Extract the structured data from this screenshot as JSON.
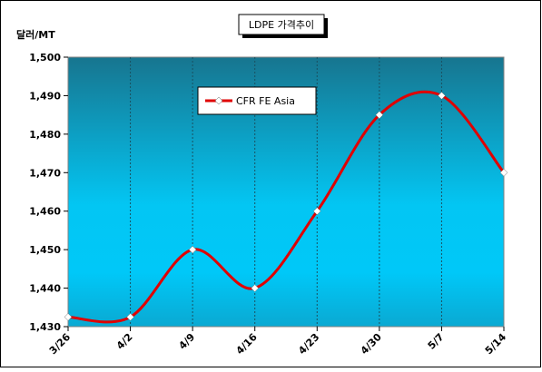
{
  "chart_data": {
    "type": "line",
    "title": "LDPE 가격추이",
    "y_label": "달러/MT",
    "categories": [
      "3/26",
      "4/2",
      "4/9",
      "4/16",
      "4/23",
      "4/30",
      "5/7",
      "5/14"
    ],
    "series": [
      {
        "name": "CFR FE Asia",
        "color": "#e00000",
        "values": [
          1432.5,
          1432.5,
          1450,
          1440,
          1460,
          1485,
          1490,
          1470
        ]
      }
    ],
    "ylim": [
      1430,
      1500
    ],
    "yticks": [
      {
        "value": 1430,
        "label": "1,430"
      },
      {
        "value": 1440,
        "label": "1,440"
      },
      {
        "value": 1450,
        "label": "1,450"
      },
      {
        "value": 1460,
        "label": "1,460"
      },
      {
        "value": 1470,
        "label": "1,470"
      },
      {
        "value": 1480,
        "label": "1,480"
      },
      {
        "value": 1490,
        "label": "1,490"
      },
      {
        "value": 1500,
        "label": "1,500"
      }
    ],
    "grid": true,
    "smooth": true
  }
}
